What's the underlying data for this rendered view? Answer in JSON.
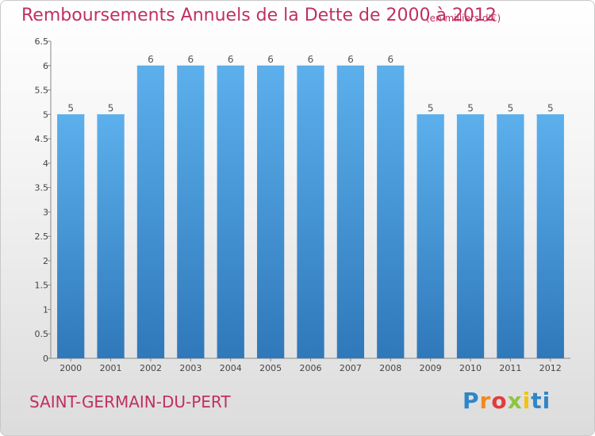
{
  "chart_data": {
    "type": "bar",
    "title": "Remboursements Annuels de la Dette de 2000 à 2012",
    "subtitle": "(en milliers d'€)",
    "categories": [
      "2000",
      "2001",
      "2002",
      "2003",
      "2004",
      "2005",
      "2006",
      "2007",
      "2008",
      "2009",
      "2010",
      "2011",
      "2012"
    ],
    "values": [
      5,
      5,
      6,
      6,
      6,
      6,
      6,
      6,
      6,
      5,
      5,
      5,
      5
    ],
    "data_labels": [
      "5",
      "5",
      "6",
      "6",
      "6",
      "6",
      "6",
      "6",
      "6",
      "5",
      "5",
      "5",
      "5"
    ],
    "ylim": [
      0,
      6.5
    ],
    "yticks": [
      0,
      0.5,
      1,
      1.5,
      2,
      2.5,
      3,
      3.5,
      4,
      4.5,
      5,
      5.5,
      6,
      6.5
    ],
    "ytick_labels": [
      "0",
      "0.5",
      "1",
      "1.5",
      "2",
      "2.5",
      "3",
      "3.5",
      "4",
      "4.5",
      "5",
      "5.5",
      "6",
      "6.5"
    ],
    "grid": false,
    "bar_color": "#4a97d8",
    "bar_color_light": "#5aaeea",
    "bar_color_dark": "#2e78bb"
  },
  "footer": {
    "place_name": "SAINT-GERMAIN-DU-PERT",
    "logo_text": [
      "P",
      "r",
      "o",
      "x",
      "i",
      "t",
      "i"
    ],
    "accent_color": "#c0305e"
  }
}
